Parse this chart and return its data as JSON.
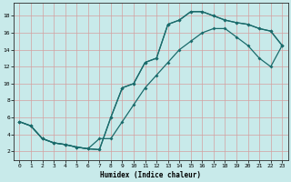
{
  "xlabel": "Humidex (Indice chaleur)",
  "bg_color": "#c8eaea",
  "line_color": "#1a6b6b",
  "grid_color": "#d4a0a0",
  "xlim": [
    -0.5,
    23.5
  ],
  "ylim": [
    1.0,
    19.5
  ],
  "xtick_labels": [
    "0",
    "1",
    "2",
    "3",
    "4",
    "5",
    "6",
    "7",
    "8",
    "9",
    "10",
    "11",
    "12",
    "13",
    "14",
    "15",
    "16",
    "17",
    "18",
    "19",
    "20",
    "21",
    "22",
    "23"
  ],
  "xticks": [
    0,
    1,
    2,
    3,
    4,
    5,
    6,
    7,
    8,
    9,
    10,
    11,
    12,
    13,
    14,
    15,
    16,
    17,
    18,
    19,
    20,
    21,
    22,
    23
  ],
  "yticks": [
    2,
    4,
    6,
    8,
    10,
    12,
    14,
    16,
    18
  ],
  "line1_x": [
    0,
    1,
    2,
    3,
    4,
    5,
    6,
    7,
    8,
    9,
    10,
    11,
    12,
    13,
    14,
    15,
    16,
    17,
    18,
    19,
    20,
    21,
    22,
    23
  ],
  "line1_y": [
    5.5,
    5.0,
    3.5,
    3.0,
    2.8,
    2.5,
    2.3,
    2.2,
    6.0,
    9.5,
    10.0,
    12.5,
    13.0,
    17.0,
    17.5,
    18.5,
    18.5,
    18.0,
    17.5,
    17.2,
    17.0,
    16.5,
    16.2,
    14.5
  ],
  "line2_x": [
    0,
    1,
    2,
    3,
    4,
    5,
    6,
    7,
    8,
    9,
    10,
    11,
    12,
    13,
    14,
    15,
    16,
    17,
    18,
    19,
    20,
    21,
    22,
    23
  ],
  "line2_y": [
    5.5,
    5.0,
    3.5,
    3.0,
    2.8,
    2.5,
    2.3,
    2.2,
    6.0,
    9.5,
    10.0,
    12.5,
    13.0,
    17.0,
    17.5,
    18.5,
    18.5,
    18.0,
    17.5,
    17.2,
    17.0,
    16.5,
    16.2,
    14.5
  ],
  "line3_x": [
    0,
    1,
    2,
    3,
    4,
    5,
    6,
    7,
    8,
    9,
    10,
    11,
    12,
    13,
    14,
    15,
    16,
    17,
    18,
    19,
    20,
    21,
    22,
    23
  ],
  "line3_y": [
    5.5,
    5.0,
    3.5,
    3.0,
    2.8,
    2.5,
    2.3,
    3.5,
    3.5,
    5.5,
    7.5,
    9.5,
    11.0,
    12.5,
    14.0,
    15.0,
    16.0,
    16.5,
    16.5,
    15.5,
    14.5,
    13.0,
    12.0,
    14.5
  ]
}
